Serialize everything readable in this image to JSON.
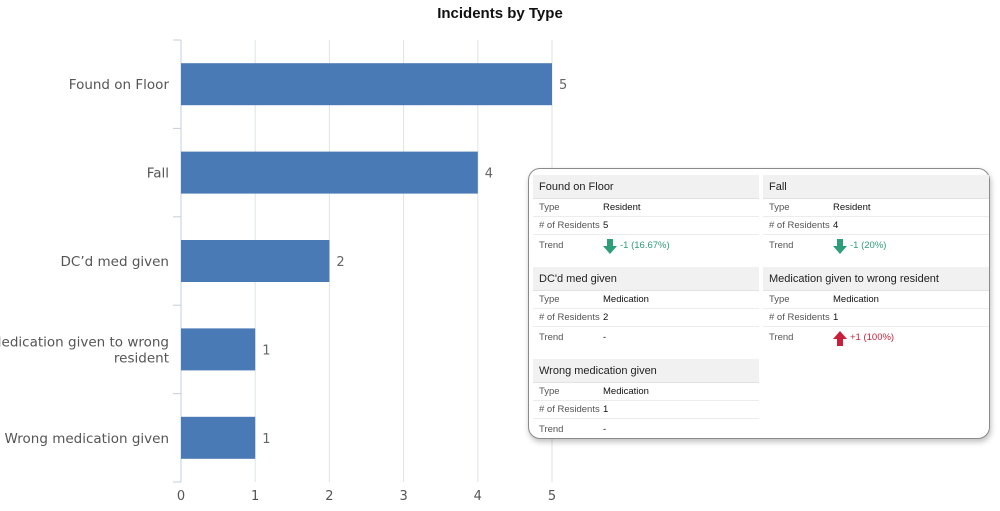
{
  "chart_data": {
    "type": "bar",
    "orientation": "horizontal",
    "title": "Incidents by Type",
    "categories": [
      "Found on Floor",
      "Fall",
      "DC’d med given",
      "Medication given to wrong resident",
      "Wrong medication given"
    ],
    "category_lines": [
      [
        "Found on Floor"
      ],
      [
        "Fall"
      ],
      [
        "DC’d med given"
      ],
      [
        "Medication given to wrong",
        "resident"
      ],
      [
        "Wrong medication given"
      ]
    ],
    "values": [
      5,
      4,
      2,
      1,
      1
    ],
    "xlim": [
      0,
      5
    ],
    "xticks": [
      0,
      1,
      2,
      3,
      4,
      5
    ],
    "grid": true,
    "color": "#4a7ab5",
    "data_labels": true
  },
  "tooltip": {
    "cards": [
      {
        "title": "Found on Floor",
        "type_label": "Type",
        "type_value": "Resident",
        "residents_label": "# of Residents",
        "residents_value": "5",
        "trend_label": "Trend",
        "trend_value": "-1 (16.67%)",
        "trend_dir": "down",
        "trend_icon": "arrow-down-icon"
      },
      {
        "title": "Fall",
        "type_label": "Type",
        "type_value": "Resident",
        "residents_label": "# of Residents",
        "residents_value": "4",
        "trend_label": "Trend",
        "trend_value": "-1 (20%)",
        "trend_dir": "down",
        "trend_icon": "arrow-down-icon"
      },
      {
        "title": "DC'd med given",
        "type_label": "Type",
        "type_value": "Medication",
        "residents_label": "# of Residents",
        "residents_value": "2",
        "trend_label": "Trend",
        "trend_value": "-",
        "trend_dir": "none"
      },
      {
        "title": "Medication given to wrong resident",
        "type_label": "Type",
        "type_value": "Medication",
        "residents_label": "# of Residents",
        "residents_value": "1",
        "trend_label": "Trend",
        "trend_value": "+1 (100%)",
        "trend_dir": "up",
        "trend_icon": "arrow-up-icon"
      },
      {
        "title": "Wrong medication given",
        "type_label": "Type",
        "type_value": "Medication",
        "residents_label": "# of Residents",
        "residents_value": "1",
        "trend_label": "Trend",
        "trend_value": "-",
        "trend_dir": "none"
      }
    ],
    "colors": {
      "down": "#2e9e7a",
      "up": "#c8203a"
    }
  }
}
